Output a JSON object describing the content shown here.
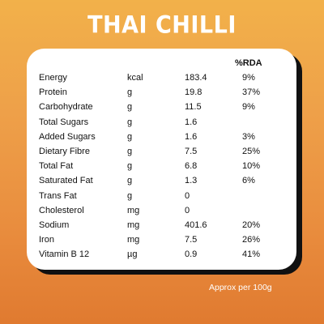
{
  "title": "THAI CHILLI",
  "rda_header": "%RDA",
  "rows": [
    {
      "name": "Energy",
      "unit": "kcal",
      "value": "183.4",
      "rda": "9%"
    },
    {
      "name": "Protein",
      "unit": "g",
      "value": "19.8",
      "rda": "37%"
    },
    {
      "name": "Carbohydrate",
      "unit": "g",
      "value": "11.5",
      "rda": "9%"
    },
    {
      "name": "Total Sugars",
      "unit": "g",
      "value": "1.6",
      "rda": ""
    },
    {
      "name": "Added Sugars",
      "unit": "g",
      "value": "1.6",
      "rda": "3%"
    },
    {
      "name": "Dietary Fibre",
      "unit": "g",
      "value": "7.5",
      "rda": "25%"
    },
    {
      "name": "Total Fat",
      "unit": "g",
      "value": "6.8",
      "rda": "10%"
    },
    {
      "name": "Saturated Fat",
      "unit": "g",
      "value": "1.3",
      "rda": "6%"
    },
    {
      "name": "Trans Fat",
      "unit": "g",
      "value": "0",
      "rda": ""
    },
    {
      "name": "Cholesterol",
      "unit": "mg",
      "value": "0",
      "rda": ""
    },
    {
      "name": "Sodium",
      "unit": "mg",
      "value": "401.6",
      "rda": "20%"
    },
    {
      "name": "Iron",
      "unit": "mg",
      "value": "7.5",
      "rda": "26%"
    },
    {
      "name": "Vitamin B 12",
      "unit": "µg",
      "value": "0.9",
      "rda": "41%"
    }
  ],
  "footnote": "Approx per 100g"
}
